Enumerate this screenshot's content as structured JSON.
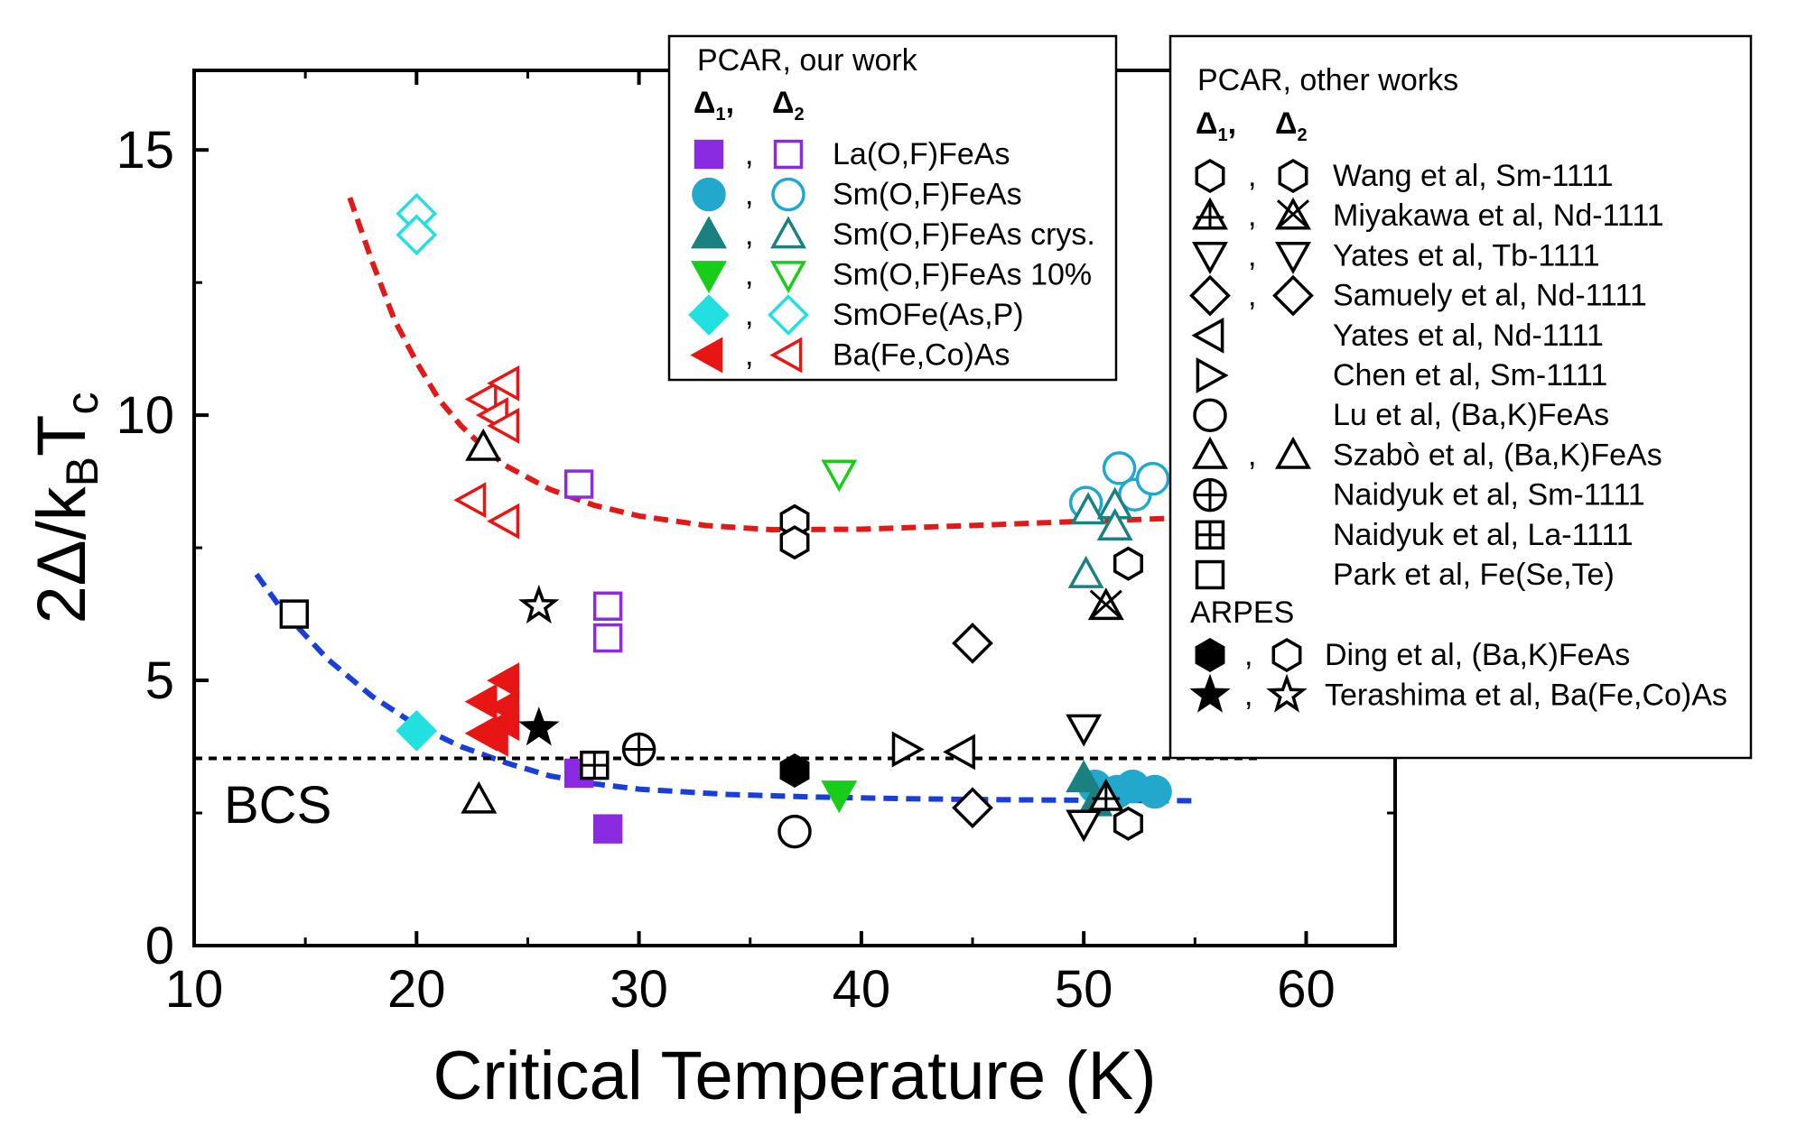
{
  "chart_data": {
    "type": "scatter",
    "title": "",
    "xlabel": "Critical Temperature (K)",
    "ylabel": {
      "prefix": "2Δ/k",
      "sub1": "B",
      "mid": "T",
      "sub2": "c"
    },
    "xlim": [
      10,
      64
    ],
    "ylim": [
      0,
      16.5
    ],
    "xticks": [
      10,
      20,
      30,
      40,
      50,
      60
    ],
    "yticks": [
      0,
      5,
      10,
      15
    ],
    "bcs": {
      "label": "BCS",
      "value": 3.53
    },
    "fit_curves": [
      {
        "name": "Δ2 guide",
        "color": "#e01919",
        "points": [
          [
            17,
            14.1
          ],
          [
            18,
            12.9
          ],
          [
            19,
            11.8
          ],
          [
            20,
            11.0
          ],
          [
            21,
            10.3
          ],
          [
            22,
            9.8
          ],
          [
            23,
            9.4
          ],
          [
            24,
            9.05
          ],
          [
            26,
            8.6
          ],
          [
            28,
            8.3
          ],
          [
            30,
            8.1
          ],
          [
            33,
            7.92
          ],
          [
            36,
            7.84
          ],
          [
            40,
            7.85
          ],
          [
            45,
            7.92
          ],
          [
            50,
            8.0
          ],
          [
            55,
            8.07
          ]
        ]
      },
      {
        "name": "Δ1 guide",
        "color": "#1a3fd8",
        "points": [
          [
            12.8,
            7.0
          ],
          [
            14,
            6.3
          ],
          [
            16,
            5.4
          ],
          [
            18,
            4.7
          ],
          [
            20,
            4.15
          ],
          [
            22,
            3.75
          ],
          [
            24,
            3.45
          ],
          [
            26,
            3.2
          ],
          [
            28,
            3.05
          ],
          [
            30,
            2.95
          ],
          [
            34,
            2.85
          ],
          [
            38,
            2.8
          ],
          [
            42,
            2.77
          ],
          [
            46,
            2.75
          ],
          [
            50,
            2.74
          ],
          [
            55,
            2.73
          ]
        ]
      }
    ],
    "series": [
      {
        "name": "La(O,F)FeAs",
        "group": "our",
        "color": "#8a2be2",
        "delta1": {
          "shape": "square",
          "fill": "filled",
          "points": [
            [
              27.3,
              3.25
            ],
            [
              28.6,
              2.2
            ]
          ]
        },
        "delta2": {
          "shape": "square",
          "fill": "open",
          "points": [
            [
              27.3,
              8.7
            ],
            [
              28.6,
              6.4
            ],
            [
              28.6,
              5.8
            ]
          ]
        }
      },
      {
        "name": "Sm(O,F)FeAs",
        "group": "our",
        "color": "#22a8cc",
        "delta1": {
          "shape": "circle",
          "fill": "filled",
          "points": [
            [
              50.5,
              3.0
            ],
            [
              51.5,
              2.9
            ],
            [
              52.2,
              3.0
            ],
            [
              53.2,
              2.9
            ]
          ]
        },
        "delta2": {
          "shape": "circle",
          "fill": "open",
          "points": [
            [
              50.1,
              8.35
            ],
            [
              51.6,
              9.0
            ],
            [
              52.3,
              8.5
            ],
            [
              53.1,
              8.8
            ]
          ]
        }
      },
      {
        "name": "Sm(O,F)FeAs crys.",
        "group": "our",
        "color": "#1a8080",
        "delta1": {
          "shape": "triangle-up",
          "fill": "filled",
          "points": [
            [
              50.0,
              3.15
            ],
            [
              50.5,
              2.7
            ]
          ]
        },
        "delta2": {
          "shape": "triangle-up",
          "fill": "open",
          "points": [
            [
              50.1,
              7.0
            ],
            [
              50.2,
              8.2
            ],
            [
              51.4,
              8.3
            ],
            [
              51.4,
              7.9
            ]
          ]
        }
      },
      {
        "name": "Sm(O,F)FeAs 10%",
        "group": "our",
        "color": "#19cc19",
        "delta1": {
          "shape": "triangle-down",
          "fill": "filled",
          "points": [
            [
              39.0,
              2.85
            ]
          ]
        },
        "delta2": {
          "shape": "triangle-down",
          "fill": "open",
          "points": [
            [
              39.0,
              8.9
            ]
          ]
        }
      },
      {
        "name": "SmOFe(As,P)",
        "group": "our",
        "color": "#22e0e0",
        "delta1": {
          "shape": "diamond",
          "fill": "filled",
          "points": [
            [
              20.0,
              4.05
            ]
          ]
        },
        "delta2": {
          "shape": "diamond",
          "fill": "open",
          "points": [
            [
              20.0,
              13.8
            ],
            [
              20.0,
              13.4
            ]
          ]
        }
      },
      {
        "name": "Ba(Fe,Co)As",
        "group": "our",
        "color": "#e81515",
        "delta1": {
          "shape": "triangle-left",
          "fill": "filled",
          "points": [
            [
              23.0,
              4.6
            ],
            [
              24.0,
              5.0
            ],
            [
              23.0,
              4.0
            ],
            [
              24.0,
              4.2
            ],
            [
              23.5,
              3.9
            ],
            [
              24.0,
              4.5
            ]
          ]
        },
        "delta2": {
          "shape": "triangle-left",
          "fill": "open",
          "points": [
            [
              23.0,
              10.3
            ],
            [
              24.0,
              10.6
            ],
            [
              23.5,
              10.0
            ],
            [
              24.0,
              9.8
            ],
            [
              22.5,
              8.4
            ],
            [
              24.0,
              8.0
            ]
          ]
        }
      },
      {
        "name": "Wang et al, Sm-1111",
        "group": "other",
        "color": "#000000",
        "delta1": {
          "shape": "hex-bottom",
          "fill": "half",
          "points": [
            [
              52.0,
              2.3
            ]
          ]
        },
        "delta2": {
          "shape": "hex-right",
          "fill": "half",
          "points": [
            [
              52.0,
              7.2
            ]
          ]
        }
      },
      {
        "name": "Miyakawa et al, Nd-1111",
        "group": "other",
        "color": "#000000",
        "delta1": {
          "shape": "triangle-plus",
          "fill": "open",
          "points": [
            [
              51.0,
              2.8
            ]
          ]
        },
        "delta2": {
          "shape": "triangle-x",
          "fill": "open",
          "points": [
            [
              51.0,
              6.4
            ]
          ]
        }
      },
      {
        "name": "Yates et al, Tb-1111",
        "group": "other",
        "color": "#000000",
        "delta1": {
          "shape": "tridown-bottom",
          "fill": "half",
          "points": [
            [
              50.0,
              2.3
            ]
          ]
        },
        "delta2": {
          "shape": "tridown-right",
          "fill": "half",
          "points": [
            [
              50.0,
              4.1
            ]
          ]
        }
      },
      {
        "name": "Samuely et al, Nd-1111",
        "group": "other",
        "color": "#000000",
        "delta1": {
          "shape": "diamond-bottom",
          "fill": "half",
          "points": [
            [
              45.0,
              2.6
            ]
          ]
        },
        "delta2": {
          "shape": "diamond-left",
          "fill": "half",
          "points": [
            [
              45.0,
              5.7
            ]
          ]
        }
      },
      {
        "name": "Yates et al, Nd-1111",
        "group": "other",
        "color": "#000000",
        "delta1": {
          "shape": "trileft-bottom",
          "fill": "half",
          "points": [
            [
              44.5,
              3.65
            ]
          ]
        }
      },
      {
        "name": "Chen et al, Sm-1111",
        "group": "other",
        "color": "#000000",
        "delta1": {
          "shape": "triright-bottom",
          "fill": "half",
          "points": [
            [
              42.0,
              3.7
            ]
          ]
        }
      },
      {
        "name": "Lu et al, (Ba,K)FeAs",
        "group": "other",
        "color": "#000000",
        "delta1": {
          "shape": "circle-bottom",
          "fill": "half",
          "points": [
            [
              37.0,
              2.15
            ]
          ]
        }
      },
      {
        "name": "Szabò et al, (Ba,K)FeAs",
        "group": "other",
        "color": "#000000",
        "delta1": {
          "shape": "triangle-bottom",
          "fill": "half",
          "points": [
            [
              22.8,
              2.75
            ]
          ]
        },
        "delta2": {
          "shape": "triangle-left-half",
          "fill": "half",
          "points": [
            [
              23.0,
              9.4
            ]
          ]
        }
      },
      {
        "name": "Naidyuk et al, Sm-1111",
        "group": "other",
        "color": "#000000",
        "delta1": {
          "shape": "circle-plus",
          "fill": "open",
          "points": [
            [
              30.0,
              3.7
            ]
          ]
        }
      },
      {
        "name": "Naidyuk et al, La-1111",
        "group": "other",
        "color": "#000000",
        "delta1": {
          "shape": "square-plus",
          "fill": "open",
          "points": [
            [
              28.0,
              3.4
            ]
          ]
        }
      },
      {
        "name": "Park et al, Fe(Se,Te)",
        "group": "other",
        "color": "#000000",
        "delta1": {
          "shape": "square-top",
          "fill": "half",
          "points": [
            [
              14.5,
              6.25
            ]
          ]
        }
      },
      {
        "name": "Ding et al, (Ba,K)FeAs",
        "group": "arpes",
        "color": "#000000",
        "delta1": {
          "shape": "hexagon",
          "fill": "filled",
          "points": [
            [
              37.0,
              3.3
            ]
          ]
        },
        "delta2": {
          "shape": "hexagon",
          "fill": "open",
          "points": [
            [
              37.0,
              8.0
            ],
            [
              37.0,
              7.6
            ]
          ]
        }
      },
      {
        "name": "Terashima et al, Ba(Fe,Co)As",
        "group": "arpes",
        "color": "#000000",
        "delta1": {
          "shape": "star",
          "fill": "filled",
          "points": [
            [
              25.5,
              4.1
            ]
          ]
        },
        "delta2": {
          "shape": "star",
          "fill": "open",
          "points": [
            [
              25.5,
              6.4
            ]
          ]
        }
      }
    ]
  },
  "legend_our": {
    "title": "PCAR, our work",
    "d1": "Δ",
    "d1_sub": "1",
    "d2": "Δ",
    "d2_sub": "2",
    "comma": ","
  },
  "legend_other": {
    "title": "PCAR, other works",
    "d1": "Δ",
    "d1_sub": "1",
    "d2": "Δ",
    "d2_sub": "2",
    "comma": ",",
    "arpes_title": "ARPES"
  }
}
